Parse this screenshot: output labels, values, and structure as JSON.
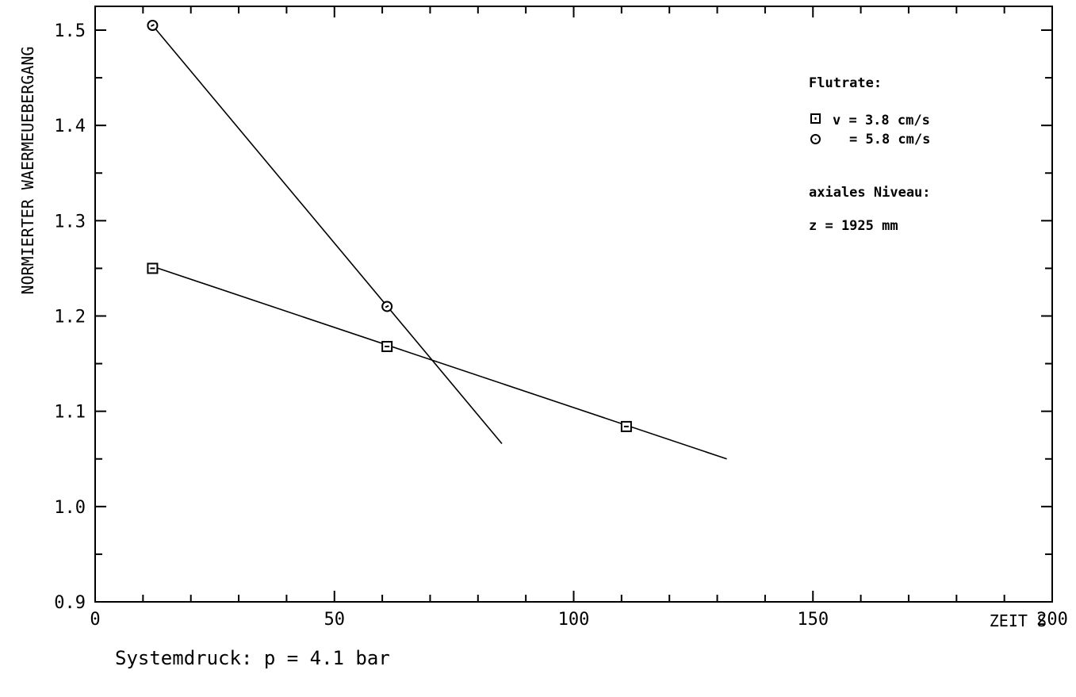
{
  "chart_data": {
    "type": "scatter",
    "xlabel": "ZEIT S",
    "ylabel": "NORMIERTER WAERMEUEBERGANG",
    "xlim": [
      0,
      200
    ],
    "ylim": [
      0.9,
      1.52
    ],
    "xticks": [
      0,
      50,
      100,
      150,
      200
    ],
    "xtick_labels": [
      "0",
      "50",
      "100",
      "150",
      "200"
    ],
    "yticks": [
      0.9,
      1.0,
      1.1,
      1.2,
      1.3,
      1.4,
      1.5
    ],
    "ytick_labels": [
      "0.9",
      "1.0",
      "1.1",
      "1.2",
      "1.3",
      "1.4",
      "1.5"
    ],
    "grid": false,
    "series": [
      {
        "marker": "square",
        "x": [
          12,
          61,
          111
        ],
        "y": [
          1.25,
          1.168,
          1.084
        ],
        "fit_line": {
          "x": [
            12,
            132
          ],
          "y": [
            1.252,
            1.05
          ]
        }
      },
      {
        "marker": "circle",
        "x": [
          12,
          61
        ],
        "y": [
          1.505,
          1.21
        ],
        "fit_line": {
          "x": [
            12,
            85
          ],
          "y": [
            1.505,
            1.066
          ]
        }
      }
    ],
    "legend": {
      "title": "Flutrate:",
      "entries": [
        "v = 3.8 cm/s",
        "= 5.8 cm/s"
      ],
      "level_title": "axiales Niveau:",
      "level_value": "z = 1925 mm",
      "placement": "top-right"
    },
    "footnote": "Systemdruck: p = 4.1 bar"
  }
}
